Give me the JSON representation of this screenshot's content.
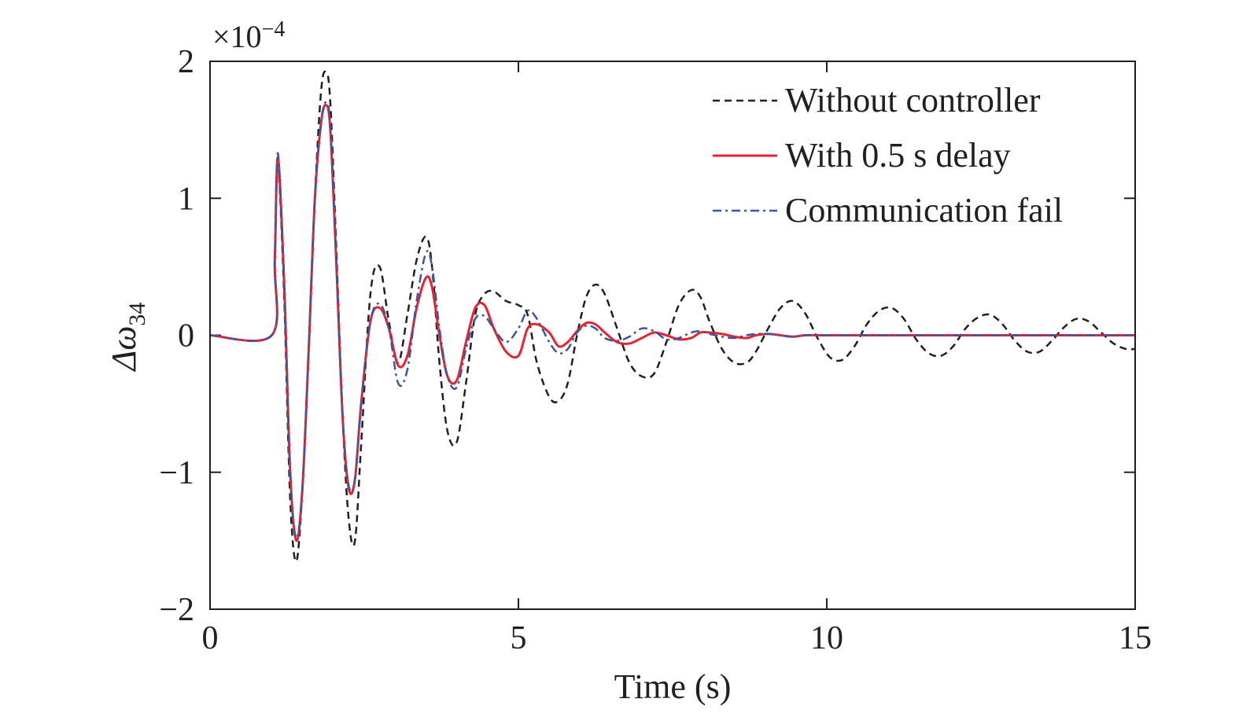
{
  "chart_data": {
    "type": "line",
    "xlabel": "Time (s)",
    "ylabel_main": "Δω",
    "ylabel_sub": "34",
    "y_exponent_prefix": "×10",
    "y_exponent_power": "−4",
    "xlim": [
      0,
      15
    ],
    "ylim": [
      -2,
      2
    ],
    "xticks": [
      0,
      5,
      10,
      15
    ],
    "xtick_labels": [
      "0",
      "5",
      "10",
      "15"
    ],
    "yticks": [
      -2,
      -1,
      0,
      1,
      2
    ],
    "ytick_labels": [
      "−2",
      "−1",
      "0",
      "1",
      "2"
    ],
    "grid": false,
    "legend_position": "top-right",
    "series": [
      {
        "name": "Without controller",
        "color": "#231f20",
        "style": "dashed",
        "x": [
          0,
          1.0,
          1.05,
          1.1,
          1.2,
          1.3,
          1.4,
          1.5,
          1.6,
          1.7,
          1.8,
          1.88,
          1.95,
          2.05,
          2.15,
          2.25,
          2.35,
          2.45,
          2.6,
          2.75,
          2.9,
          3.05,
          3.2,
          3.35,
          3.5,
          3.6,
          3.72,
          3.85,
          4.0,
          4.15,
          4.3,
          4.45,
          4.6,
          4.8,
          5.0,
          5.15,
          5.3,
          5.5,
          5.65,
          5.8,
          5.95,
          6.1,
          6.25,
          6.4,
          6.6,
          6.8,
          7.0,
          7.2,
          7.4,
          7.6,
          7.8,
          7.95,
          8.1,
          8.3,
          8.5,
          8.7,
          8.85,
          9.05,
          9.25,
          9.45,
          9.65,
          9.85,
          10.05,
          10.25,
          10.45,
          10.65,
          10.85,
          11.05,
          11.25,
          11.45,
          11.65,
          11.85,
          12.05,
          12.25,
          12.45,
          12.65,
          12.85,
          13.05,
          13.25,
          13.45,
          13.65,
          13.85,
          14.05,
          14.25,
          14.45,
          14.65,
          14.85,
          15.0
        ],
        "y": [
          0,
          0,
          0.55,
          1.25,
          0.3,
          -1.2,
          -1.65,
          -1.1,
          -0.1,
          1.0,
          1.78,
          1.92,
          1.7,
          0.6,
          -0.6,
          -1.35,
          -1.5,
          -0.8,
          0.3,
          0.5,
          0.1,
          -0.2,
          0.15,
          0.55,
          0.72,
          0.5,
          -0.2,
          -0.7,
          -0.78,
          -0.35,
          0.15,
          0.3,
          0.32,
          0.25,
          0.22,
          0.15,
          -0.2,
          -0.45,
          -0.48,
          -0.35,
          0.0,
          0.28,
          0.37,
          0.3,
          0.05,
          -0.2,
          -0.3,
          -0.28,
          -0.05,
          0.22,
          0.33,
          0.28,
          0.1,
          -0.1,
          -0.2,
          -0.2,
          -0.12,
          0.05,
          0.2,
          0.25,
          0.16,
          -0.02,
          -0.16,
          -0.18,
          -0.08,
          0.08,
          0.18,
          0.2,
          0.12,
          -0.03,
          -0.13,
          -0.15,
          -0.08,
          0.05,
          0.13,
          0.15,
          0.08,
          -0.04,
          -0.12,
          -0.12,
          -0.04,
          0.06,
          0.12,
          0.1,
          0.02,
          -0.06,
          -0.1,
          -0.1
        ]
      },
      {
        "name": "With 0.5 s delay",
        "color": "#e8232d",
        "style": "solid",
        "x": [
          0,
          1.0,
          1.05,
          1.1,
          1.2,
          1.3,
          1.4,
          1.5,
          1.6,
          1.7,
          1.8,
          1.88,
          1.95,
          2.05,
          2.15,
          2.25,
          2.35,
          2.45,
          2.6,
          2.75,
          2.9,
          3.05,
          3.2,
          3.35,
          3.5,
          3.6,
          3.72,
          3.85,
          4.0,
          4.15,
          4.3,
          4.45,
          4.6,
          4.8,
          5.0,
          5.15,
          5.3,
          5.5,
          5.65,
          5.8,
          5.95,
          6.1,
          6.25,
          6.4,
          6.6,
          6.8,
          7.0,
          7.2,
          7.4,
          7.6,
          7.8,
          7.95,
          8.1,
          8.3,
          8.5,
          8.7,
          8.85,
          9.05,
          9.25,
          9.45,
          9.65,
          9.85,
          10.05,
          10.25,
          10.45,
          10.65,
          10.85,
          11.05,
          11.25,
          11.45,
          11.65,
          11.85,
          12.05,
          12.25,
          12.45,
          12.65,
          12.85,
          13.05,
          13.25,
          13.45,
          13.65,
          13.85,
          14.05,
          14.25,
          14.45,
          14.65,
          14.85,
          15.0
        ],
        "y": [
          0,
          0,
          0.55,
          1.3,
          0.4,
          -1.0,
          -1.5,
          -1.1,
          -0.1,
          1.0,
          1.55,
          1.68,
          1.5,
          0.5,
          -0.6,
          -1.12,
          -1.05,
          -0.5,
          0.1,
          0.2,
          0.05,
          -0.22,
          -0.15,
          0.2,
          0.42,
          0.35,
          0.0,
          -0.3,
          -0.33,
          -0.05,
          0.2,
          0.22,
          0.05,
          -0.12,
          -0.15,
          0.05,
          0.08,
          0.02,
          -0.08,
          -0.05,
          0.03,
          0.09,
          0.08,
          0.02,
          -0.05,
          -0.06,
          -0.02,
          0.02,
          0.0,
          -0.03,
          -0.02,
          0.02,
          0.02,
          0.01,
          -0.01,
          -0.02,
          0.0,
          0.01,
          0.0,
          -0.01,
          0.0,
          0.0,
          0.0,
          0.0,
          0.0,
          0.0,
          0.0,
          0.0,
          0.0,
          0.0,
          0.0,
          0.0,
          0.0,
          0.0,
          0.0,
          0.0,
          0.0,
          0.0,
          0.0,
          0.0,
          0.0,
          0.0,
          0.0,
          0.0,
          0.0,
          0.0,
          0.0,
          0.0
        ]
      },
      {
        "name": "Communication fail",
        "color": "#3b55a5",
        "style": "dashdot",
        "x": [
          0,
          1.0,
          1.05,
          1.1,
          1.2,
          1.3,
          1.4,
          1.5,
          1.6,
          1.7,
          1.8,
          1.88,
          1.95,
          2.05,
          2.15,
          2.25,
          2.35,
          2.45,
          2.6,
          2.75,
          2.9,
          3.05,
          3.2,
          3.35,
          3.5,
          3.6,
          3.72,
          3.85,
          4.0,
          4.15,
          4.3,
          4.45,
          4.6,
          4.8,
          5.0,
          5.15,
          5.3,
          5.5,
          5.65,
          5.8,
          5.95,
          6.1,
          6.25,
          6.4,
          6.6,
          6.8,
          7.0,
          7.2,
          7.4,
          7.6,
          7.8,
          7.95,
          8.1,
          8.3,
          8.5,
          8.7,
          8.85,
          9.05,
          9.25,
          9.45,
          9.65,
          9.85,
          10.05,
          10.25,
          10.45,
          10.65,
          10.85,
          11.05,
          11.25,
          11.45,
          11.65,
          11.85,
          12.05,
          12.25,
          12.45,
          12.65,
          12.85,
          13.05,
          13.25,
          13.45,
          13.65,
          13.85,
          14.05,
          14.25,
          14.45,
          14.65,
          14.85,
          15.0
        ],
        "y": [
          0,
          0,
          0.55,
          1.33,
          0.4,
          -1.0,
          -1.48,
          -1.1,
          -0.1,
          1.0,
          1.55,
          1.7,
          1.52,
          0.5,
          -0.6,
          -1.1,
          -1.05,
          -0.5,
          0.1,
          0.23,
          0.05,
          -0.35,
          -0.25,
          0.25,
          0.6,
          0.5,
          0.05,
          -0.3,
          -0.38,
          -0.1,
          0.12,
          0.14,
          0.05,
          -0.05,
          0.05,
          0.18,
          0.12,
          -0.05,
          -0.13,
          -0.1,
          0.02,
          0.07,
          0.05,
          -0.02,
          -0.04,
          -0.01,
          0.05,
          0.03,
          -0.03,
          -0.02,
          0.02,
          0.03,
          0.01,
          -0.01,
          -0.02,
          0.0,
          0.01,
          0.01,
          0.0,
          -0.01,
          0.0,
          0.0,
          0.0,
          0.0,
          0.0,
          0.0,
          0.0,
          0.0,
          0.0,
          0.0,
          0.0,
          0.0,
          0.0,
          0.0,
          0.0,
          0.0,
          0.0,
          0.0,
          0.0,
          0.0,
          0.0,
          0.0,
          0.0,
          0.0,
          0.0,
          0.0,
          0.0,
          0.0
        ]
      }
    ]
  }
}
